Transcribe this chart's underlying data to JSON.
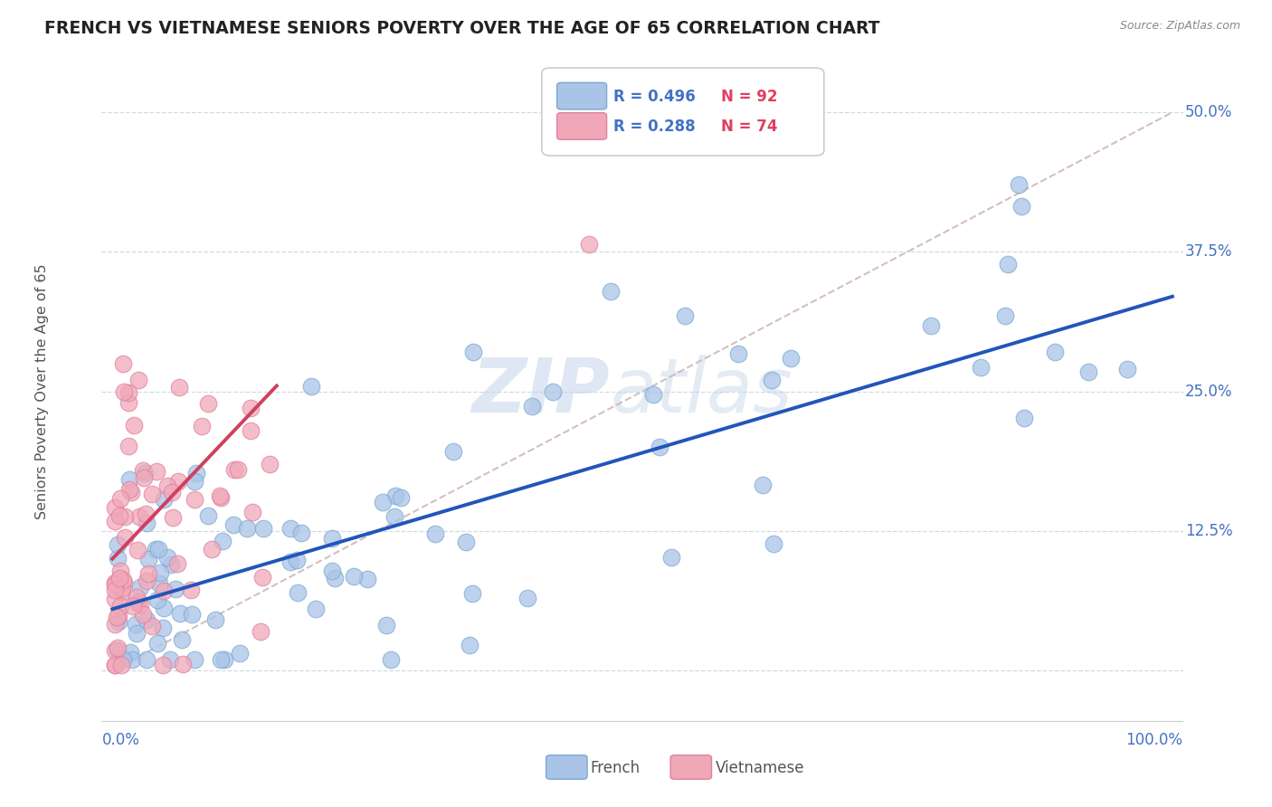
{
  "title": "FRENCH VS VIETNAMESE SENIORS POVERTY OVER THE AGE OF 65 CORRELATION CHART",
  "source": "Source: ZipAtlas.com",
  "ylabel": "Seniors Poverty Over the Age of 65",
  "french_color": "#aac4e8",
  "vietnamese_color": "#f0a8b8",
  "french_edge_color": "#7aaad0",
  "vietnamese_edge_color": "#e080a0",
  "french_line_color": "#2255bb",
  "vietnamese_line_color": "#d04060",
  "dash_line_color": "#d0b8b8",
  "grid_color": "#c8d0d8",
  "watermark": "ZIPatlas",
  "watermark_color": "#c8d8ec",
  "label_color": "#4472c4",
  "text_color": "#555555",
  "legend_R_color": "#4472c4",
  "legend_N_color": "#e04060",
  "french_line_x0": 0.0,
  "french_line_y0": 0.055,
  "french_line_x1": 1.0,
  "french_line_y1": 0.335,
  "viet_line_x0": 0.0,
  "viet_line_y0": 0.1,
  "viet_line_x1": 0.155,
  "viet_line_y1": 0.255,
  "xlim": [
    0.0,
    1.0
  ],
  "ylim": [
    -0.05,
    0.55
  ],
  "ytick_pos": [
    0.0,
    0.125,
    0.25,
    0.375,
    0.5
  ],
  "ytick_labels": [
    "",
    "12.5%",
    "25.0%",
    "37.5%",
    "50.0%"
  ]
}
